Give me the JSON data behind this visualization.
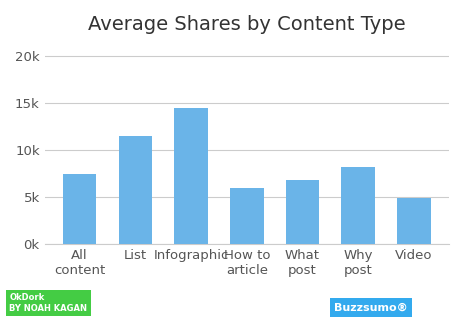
{
  "title": "Average Shares by Content Type",
  "categories": [
    "All\ncontent",
    "List",
    "Infographic",
    "How to\narticle",
    "What\npost",
    "Why\npost",
    "Video"
  ],
  "values": [
    7400,
    11500,
    14500,
    5900,
    6800,
    8200,
    4900
  ],
  "bar_color": "#6ab4e8",
  "ylim": [
    0,
    21000
  ],
  "yticks": [
    0,
    5000,
    10000,
    15000,
    20000
  ],
  "ytick_labels": [
    "0k",
    "5k",
    "10k",
    "15k",
    "20k"
  ],
  "background_color": "#ffffff",
  "title_fontsize": 14,
  "tick_fontsize": 9.5,
  "grid_color": "#cccccc",
  "okdork_bg": "#44cc44",
  "buzzsumo_bg": "#44aaee"
}
